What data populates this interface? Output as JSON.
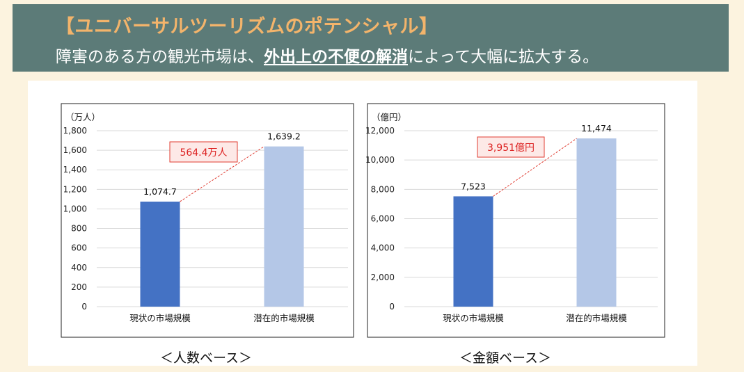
{
  "banner": {
    "title": "【ユニバーサルツーリズムのポテンシャル】",
    "subtitle_before": "障害のある方の観光市場は、",
    "subtitle_emphasis": "外出上の不便の解消",
    "subtitle_after": "によって大幅に拡大する。"
  },
  "captions": {
    "left": "＜人数ベース＞",
    "right": "＜金額ベース＞"
  },
  "colors": {
    "current": "#4472c4",
    "potential": "#b4c7e7",
    "callout": "#e03c31",
    "callout_bg": "#fde9e7"
  },
  "chart_data": [
    {
      "type": "bar",
      "unit_label": "（万人）",
      "categories": [
        "現状の市場規模",
        "潜在的市場規模"
      ],
      "values": [
        1074.7,
        1639.2
      ],
      "value_labels": [
        "1,074.7",
        "1,639.2"
      ],
      "ylim": [
        0,
        1800
      ],
      "yticks": [
        0,
        200,
        400,
        600,
        800,
        1000,
        1200,
        1400,
        1600,
        1800
      ],
      "ytick_labels": [
        "0",
        "200",
        "400",
        "600",
        "800",
        "1,000",
        "1,200",
        "1,400",
        "1,600",
        "1,800"
      ],
      "callout": "564.4万人",
      "caption": "＜人数ベース＞"
    },
    {
      "type": "bar",
      "unit_label": "（億円）",
      "categories": [
        "現状の市場規模",
        "潜在的市場規模"
      ],
      "values": [
        7523,
        11474
      ],
      "value_labels": [
        "7,523",
        "11,474"
      ],
      "ylim": [
        0,
        12000
      ],
      "yticks": [
        0,
        2000,
        4000,
        6000,
        8000,
        10000,
        12000
      ],
      "ytick_labels": [
        "0",
        "2,000",
        "4,000",
        "6,000",
        "8,000",
        "10,000",
        "12,000"
      ],
      "callout": "3,951億円",
      "caption": "＜金額ベース＞"
    }
  ]
}
